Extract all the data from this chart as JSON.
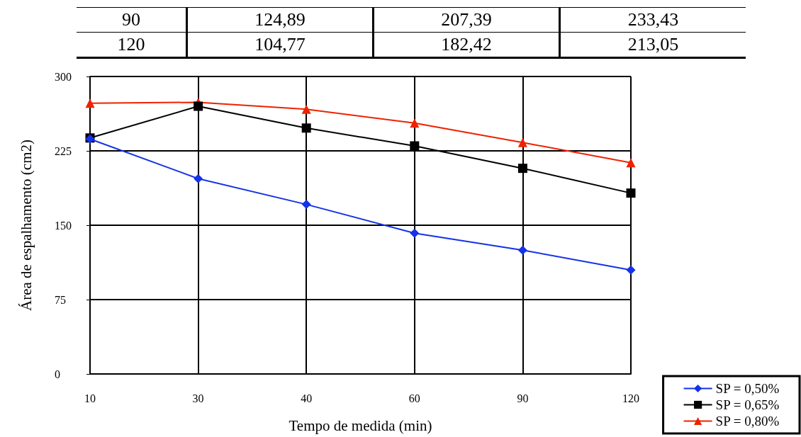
{
  "chart_data": {
    "type": "line",
    "xlabel": "Tempo de medida (min)",
    "ylabel": "Área de espalhamento (cm2)",
    "categories": [
      "10",
      "30",
      "40",
      "60",
      "90",
      "120"
    ],
    "series": [
      {
        "name": "SP = 0,50%",
        "color": "#1432e6",
        "marker": "diamond",
        "values": [
          237,
          197,
          171,
          142,
          124.89,
          104.77
        ]
      },
      {
        "name": "SP = 0,65%",
        "color": "#000000",
        "marker": "square",
        "values": [
          238,
          270,
          248,
          230,
          207.39,
          182.42
        ]
      },
      {
        "name": "SP = 0,80%",
        "color": "#ee2200",
        "marker": "triangle",
        "values": [
          273,
          274,
          267,
          253,
          233.43,
          213.05
        ]
      }
    ],
    "annotations": [
      "90",
      "124,89",
      "207,39",
      "233,43",
      "120",
      "104,77",
      "182,42",
      "213,05"
    ],
    "ylim": [
      0,
      300
    ],
    "yticks": [
      0,
      75,
      150,
      225,
      300
    ],
    "grid": true,
    "legend": "bottom right"
  }
}
